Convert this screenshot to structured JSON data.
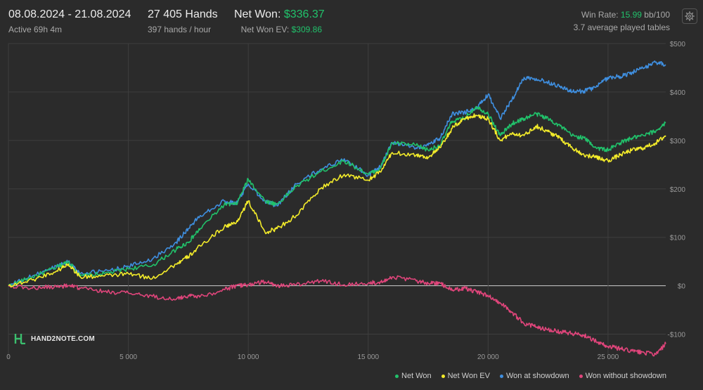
{
  "header": {
    "date_range": "08.08.2024 - 21.08.2024",
    "active": "Active 69h 4m",
    "hands": "27 405 Hands",
    "hands_per_hour": "397 hands / hour",
    "net_won_label": "Net Won:",
    "net_won_value": "$336.37",
    "net_won_ev_label": "Net Won  EV:",
    "net_won_ev_value": "$309.86",
    "win_rate_label": "Win Rate:",
    "win_rate_value": "15.99",
    "win_rate_unit": "bb/100",
    "avg_tables": "3.7 average played tables"
  },
  "logo": {
    "text": "HAND2NOTE.COM"
  },
  "colors": {
    "net_won": "#21c26b",
    "net_won_ev": "#f4ec2a",
    "won_showdown": "#3f8fe0",
    "won_without_showdown": "#e0457b",
    "background": "#2b2b2b",
    "grid": "#3e3e3e",
    "zero_line": "#cfcfcf"
  },
  "chart_data": {
    "type": "line",
    "xlim": [
      0,
      27405
    ],
    "ylim": [
      -150,
      500
    ],
    "x_ticks": [
      0,
      5000,
      10000,
      15000,
      20000,
      25000
    ],
    "x_tick_labels": [
      "0",
      "5 000",
      "10 000",
      "15 000",
      "20 000",
      "25 000"
    ],
    "y_ticks": [
      500,
      400,
      300,
      200,
      100,
      0,
      -100
    ],
    "y_tick_labels": [
      "$500",
      "$400",
      "$300",
      "$200",
      "$100",
      "$0",
      "-$100"
    ],
    "grid": true,
    "legend_position": "bottom-right",
    "x": [
      0,
      1000,
      2000,
      2500,
      3000,
      4000,
      5000,
      6000,
      7000,
      7500,
      8000,
      9000,
      9500,
      10000,
      10700,
      11200,
      12000,
      13000,
      14000,
      15000,
      15500,
      16000,
      17000,
      17500,
      18000,
      18500,
      19000,
      19500,
      20000,
      20500,
      21000,
      21500,
      22000,
      22500,
      23000,
      23500,
      24000,
      24500,
      25000,
      25500,
      26000,
      26500,
      27000,
      27405
    ],
    "series": [
      {
        "name": "Net Won",
        "values": [
          0,
          18,
          38,
          50,
          20,
          25,
          35,
          42,
          75,
          90,
          118,
          168,
          168,
          220,
          175,
          168,
          205,
          235,
          258,
          230,
          242,
          295,
          290,
          280,
          290,
          340,
          345,
          370,
          355,
          310,
          335,
          345,
          355,
          345,
          330,
          310,
          305,
          285,
          280,
          295,
          305,
          310,
          320,
          336
        ]
      },
      {
        "name": "Net Won  EV",
        "values": [
          0,
          12,
          30,
          45,
          18,
          20,
          25,
          15,
          45,
          60,
          82,
          122,
          130,
          175,
          110,
          118,
          145,
          200,
          230,
          218,
          235,
          275,
          270,
          265,
          285,
          325,
          345,
          352,
          345,
          300,
          315,
          310,
          330,
          318,
          305,
          285,
          270,
          265,
          258,
          270,
          280,
          285,
          295,
          310
        ]
      },
      {
        "name": "Won at showdown",
        "values": [
          0,
          20,
          40,
          50,
          25,
          30,
          40,
          55,
          90,
          118,
          145,
          175,
          170,
          210,
          175,
          165,
          210,
          240,
          262,
          228,
          245,
          295,
          285,
          290,
          305,
          355,
          358,
          365,
          395,
          345,
          385,
          430,
          428,
          420,
          412,
          400,
          402,
          410,
          430,
          432,
          440,
          450,
          462,
          455
        ]
      },
      {
        "name": "Won without showdown",
        "values": [
          0,
          -5,
          -2,
          0,
          -5,
          -12,
          -15,
          -22,
          -28,
          -20,
          -22,
          -8,
          0,
          2,
          8,
          0,
          2,
          10,
          2,
          5,
          8,
          18,
          10,
          5,
          5,
          -10,
          -5,
          -12,
          -20,
          -35,
          -55,
          -78,
          -85,
          -90,
          -95,
          -98,
          -102,
          -115,
          -125,
          -130,
          -135,
          -138,
          -142,
          -120
        ]
      }
    ]
  }
}
